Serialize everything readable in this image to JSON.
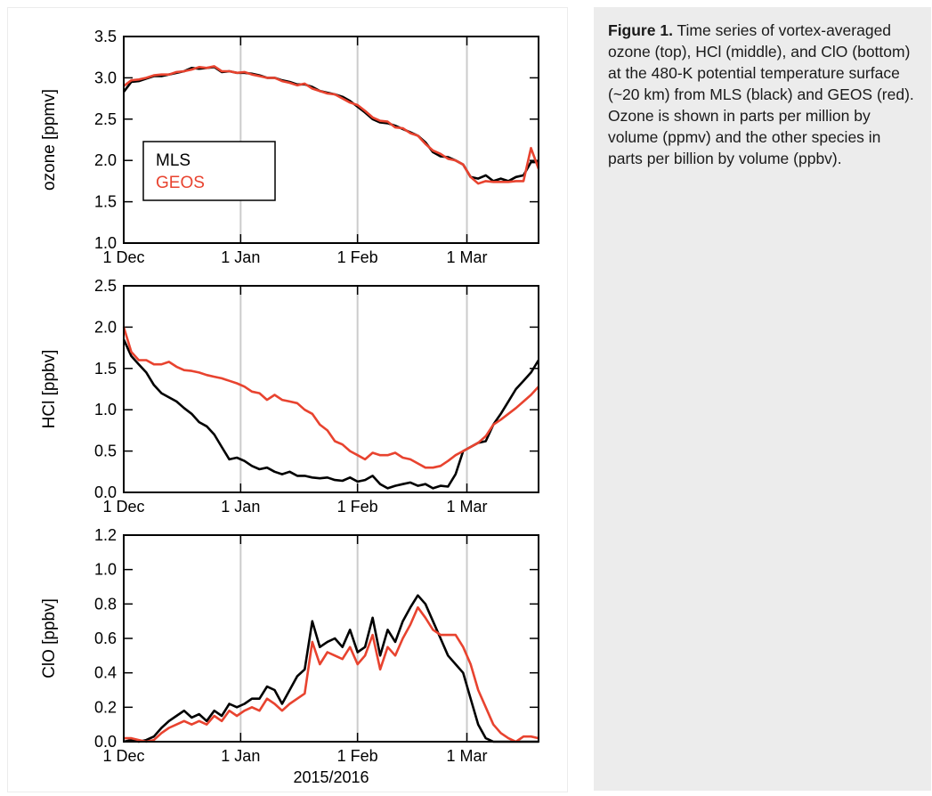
{
  "caption": {
    "label": "Figure 1.",
    "text": " Time series of vortex-averaged ozone (top), HCl (middle), and ClO (bottom) at the 480-K potential temperature surface (~20 km) from MLS (black) and GEOS (red). Ozone is shown in parts per million by volume (ppmv) and the other species in parts per billion by volume (ppbv)."
  },
  "colors": {
    "MLS": "#000000",
    "GEOS": "#e8432f",
    "grid": "#cccccc"
  },
  "chart_data": [
    {
      "type": "line",
      "ylabel": "ozone [ppmv]",
      "xlabel": "",
      "x_tick_labels": [
        "1 Dec",
        "1 Jan",
        "1 Feb",
        "1 Mar"
      ],
      "x_ticks_day": [
        0,
        31,
        62,
        91
      ],
      "xlim": [
        0,
        110
      ],
      "ylim": [
        1.0,
        3.5
      ],
      "y_ticks": [
        1.0,
        1.5,
        2.0,
        2.5,
        3.0,
        3.5
      ],
      "y_tick_labels": [
        "1.0",
        "1.5",
        "2.0",
        "2.5",
        "3.0",
        "3.5"
      ],
      "grid": true,
      "legend": {
        "entries": [
          "MLS",
          "GEOS"
        ],
        "position": "left"
      },
      "series": [
        {
          "name": "MLS",
          "day": [
            0,
            2,
            4,
            6,
            8,
            10,
            12,
            14,
            16,
            18,
            20,
            22,
            24,
            26,
            28,
            30,
            32,
            34,
            36,
            38,
            40,
            42,
            44,
            46,
            48,
            50,
            52,
            54,
            56,
            58,
            60,
            62,
            64,
            66,
            68,
            70,
            72,
            74,
            76,
            78,
            80,
            82,
            84,
            86,
            88,
            90,
            92,
            94,
            96,
            98,
            100,
            102,
            104,
            106,
            108,
            110
          ],
          "values": [
            2.83,
            2.95,
            2.96,
            2.99,
            3.02,
            3.02,
            3.04,
            3.06,
            3.08,
            3.12,
            3.11,
            3.12,
            3.13,
            3.07,
            3.08,
            3.06,
            3.06,
            3.05,
            3.03,
            3.0,
            3.0,
            2.97,
            2.95,
            2.92,
            2.92,
            2.89,
            2.84,
            2.82,
            2.8,
            2.77,
            2.72,
            2.65,
            2.58,
            2.5,
            2.46,
            2.45,
            2.42,
            2.38,
            2.34,
            2.3,
            2.22,
            2.1,
            2.05,
            2.04,
            2.0,
            1.95,
            1.8,
            1.78,
            1.82,
            1.75,
            1.78,
            1.75,
            1.8,
            1.82,
            1.98,
            1.98
          ]
        },
        {
          "name": "GEOS",
          "day": [
            0,
            2,
            4,
            6,
            8,
            10,
            12,
            14,
            16,
            18,
            20,
            22,
            24,
            26,
            28,
            30,
            32,
            34,
            36,
            38,
            40,
            42,
            44,
            46,
            48,
            50,
            52,
            54,
            56,
            58,
            60,
            62,
            64,
            66,
            68,
            70,
            72,
            74,
            76,
            78,
            80,
            82,
            84,
            86,
            88,
            90,
            92,
            94,
            96,
            98,
            100,
            102,
            104,
            106,
            108,
            110
          ],
          "values": [
            2.9,
            2.97,
            2.98,
            3.0,
            3.03,
            3.04,
            3.04,
            3.07,
            3.08,
            3.1,
            3.13,
            3.12,
            3.14,
            3.08,
            3.08,
            3.06,
            3.07,
            3.04,
            3.02,
            3.0,
            3.0,
            2.96,
            2.94,
            2.91,
            2.93,
            2.87,
            2.84,
            2.81,
            2.8,
            2.75,
            2.7,
            2.67,
            2.6,
            2.52,
            2.48,
            2.47,
            2.4,
            2.39,
            2.33,
            2.3,
            2.2,
            2.12,
            2.08,
            2.02,
            2.0,
            1.95,
            1.8,
            1.72,
            1.75,
            1.74,
            1.74,
            1.74,
            1.75,
            1.75,
            2.15,
            1.9
          ]
        }
      ]
    },
    {
      "type": "line",
      "ylabel": "HCl [ppbv]",
      "xlabel": "",
      "x_tick_labels": [
        "1 Dec",
        "1 Jan",
        "1 Feb",
        "1 Mar"
      ],
      "x_ticks_day": [
        0,
        31,
        62,
        91
      ],
      "xlim": [
        0,
        110
      ],
      "ylim": [
        0.0,
        2.5
      ],
      "y_ticks": [
        0.0,
        0.5,
        1.0,
        1.5,
        2.0,
        2.5
      ],
      "y_tick_labels": [
        "0.0",
        "0.5",
        "1.0",
        "1.5",
        "2.0",
        "2.5"
      ],
      "grid": true,
      "series": [
        {
          "name": "MLS",
          "day": [
            0,
            2,
            4,
            6,
            8,
            10,
            12,
            14,
            16,
            18,
            20,
            22,
            24,
            26,
            28,
            30,
            32,
            34,
            36,
            38,
            40,
            42,
            44,
            46,
            48,
            50,
            52,
            54,
            56,
            58,
            60,
            62,
            64,
            66,
            68,
            70,
            72,
            74,
            76,
            78,
            80,
            82,
            84,
            86,
            88,
            90,
            92,
            94,
            96,
            98,
            100,
            102,
            104,
            106,
            108,
            110
          ],
          "values": [
            1.85,
            1.65,
            1.55,
            1.45,
            1.3,
            1.2,
            1.15,
            1.1,
            1.02,
            0.95,
            0.85,
            0.8,
            0.7,
            0.55,
            0.4,
            0.42,
            0.38,
            0.32,
            0.28,
            0.3,
            0.25,
            0.22,
            0.25,
            0.2,
            0.2,
            0.18,
            0.17,
            0.18,
            0.15,
            0.14,
            0.18,
            0.13,
            0.15,
            0.2,
            0.1,
            0.05,
            0.08,
            0.1,
            0.12,
            0.08,
            0.1,
            0.05,
            0.08,
            0.07,
            0.22,
            0.5,
            0.55,
            0.6,
            0.62,
            0.82,
            0.95,
            1.1,
            1.25,
            1.35,
            1.45,
            1.6
          ]
        },
        {
          "name": "GEOS",
          "day": [
            0,
            2,
            4,
            6,
            8,
            10,
            12,
            14,
            16,
            18,
            20,
            22,
            24,
            26,
            28,
            30,
            32,
            34,
            36,
            38,
            40,
            42,
            44,
            46,
            48,
            50,
            52,
            54,
            56,
            58,
            60,
            62,
            64,
            66,
            68,
            70,
            72,
            74,
            76,
            78,
            80,
            82,
            84,
            86,
            88,
            90,
            92,
            94,
            96,
            98,
            100,
            102,
            104,
            106,
            108,
            110
          ],
          "values": [
            2.0,
            1.7,
            1.6,
            1.6,
            1.55,
            1.55,
            1.58,
            1.52,
            1.48,
            1.47,
            1.45,
            1.42,
            1.4,
            1.38,
            1.35,
            1.32,
            1.28,
            1.22,
            1.2,
            1.12,
            1.18,
            1.12,
            1.1,
            1.08,
            1.0,
            0.95,
            0.82,
            0.75,
            0.62,
            0.58,
            0.5,
            0.45,
            0.4,
            0.48,
            0.45,
            0.45,
            0.48,
            0.42,
            0.4,
            0.35,
            0.3,
            0.3,
            0.32,
            0.38,
            0.45,
            0.5,
            0.55,
            0.6,
            0.68,
            0.82,
            0.88,
            0.95,
            1.02,
            1.1,
            1.18,
            1.28
          ]
        }
      ]
    },
    {
      "type": "line",
      "ylabel": "ClO [ppbv]",
      "xlabel": "2015/2016",
      "x_tick_labels": [
        "1 Dec",
        "1 Jan",
        "1 Feb",
        "1 Mar"
      ],
      "x_ticks_day": [
        0,
        31,
        62,
        91
      ],
      "xlim": [
        0,
        110
      ],
      "ylim": [
        0.0,
        1.2
      ],
      "y_ticks": [
        0.0,
        0.2,
        0.4,
        0.6,
        0.8,
        1.0,
        1.2
      ],
      "y_tick_labels": [
        "0.0",
        "0.2",
        "0.4",
        "0.6",
        "0.8",
        "1.0",
        "1.2"
      ],
      "grid": true,
      "series": [
        {
          "name": "MLS",
          "day": [
            0,
            2,
            4,
            6,
            8,
            10,
            12,
            14,
            16,
            18,
            20,
            22,
            24,
            26,
            28,
            30,
            32,
            34,
            36,
            38,
            40,
            42,
            44,
            46,
            48,
            50,
            52,
            54,
            56,
            58,
            60,
            62,
            64,
            66,
            68,
            70,
            72,
            74,
            76,
            78,
            80,
            82,
            84,
            86,
            88,
            90,
            92,
            94,
            96,
            98,
            100,
            102,
            104,
            106,
            108,
            110
          ],
          "values": [
            0.0,
            0.01,
            0.0,
            0.01,
            0.03,
            0.08,
            0.12,
            0.15,
            0.18,
            0.14,
            0.16,
            0.12,
            0.18,
            0.15,
            0.22,
            0.2,
            0.22,
            0.25,
            0.25,
            0.32,
            0.3,
            0.22,
            0.3,
            0.38,
            0.42,
            0.7,
            0.55,
            0.58,
            0.6,
            0.55,
            0.65,
            0.52,
            0.55,
            0.72,
            0.5,
            0.65,
            0.58,
            0.7,
            0.78,
            0.85,
            0.8,
            0.7,
            0.6,
            0.5,
            0.45,
            0.4,
            0.25,
            0.1,
            0.02,
            0.0,
            0.0,
            0.0,
            0.0,
            0.0,
            0.0,
            0.0
          ]
        },
        {
          "name": "GEOS",
          "day": [
            0,
            2,
            4,
            6,
            8,
            10,
            12,
            14,
            16,
            18,
            20,
            22,
            24,
            26,
            28,
            30,
            32,
            34,
            36,
            38,
            40,
            42,
            44,
            46,
            48,
            50,
            52,
            54,
            56,
            58,
            60,
            62,
            64,
            66,
            68,
            70,
            72,
            74,
            76,
            78,
            80,
            82,
            84,
            86,
            88,
            90,
            92,
            94,
            96,
            98,
            100,
            102,
            104,
            106,
            108,
            110
          ],
          "values": [
            0.02,
            0.02,
            0.01,
            0.0,
            0.01,
            0.05,
            0.08,
            0.1,
            0.12,
            0.1,
            0.12,
            0.1,
            0.15,
            0.12,
            0.18,
            0.15,
            0.18,
            0.2,
            0.18,
            0.25,
            0.22,
            0.18,
            0.22,
            0.25,
            0.28,
            0.58,
            0.45,
            0.52,
            0.5,
            0.48,
            0.55,
            0.45,
            0.5,
            0.62,
            0.42,
            0.55,
            0.5,
            0.6,
            0.68,
            0.78,
            0.72,
            0.65,
            0.62,
            0.62,
            0.62,
            0.55,
            0.45,
            0.3,
            0.2,
            0.1,
            0.05,
            0.02,
            0.0,
            0.03,
            0.03,
            0.02
          ]
        }
      ]
    }
  ]
}
